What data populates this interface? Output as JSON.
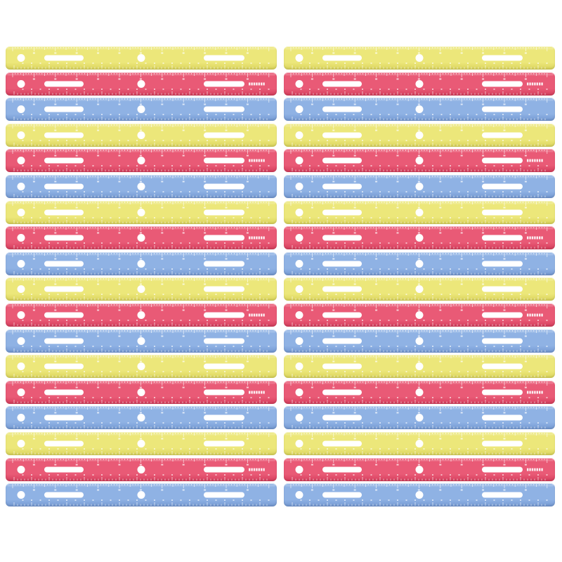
{
  "image": {
    "subject": "rulers",
    "columns": 2,
    "rows": 18,
    "color_cycle": [
      "yellow",
      "red",
      "blue"
    ]
  },
  "colors": {
    "yellow": {
      "face": "#ece77a",
      "edge": "#d9d35a",
      "mark": "#ffffff"
    },
    "red": {
      "face": "#e95a76",
      "edge": "#d43d5c",
      "mark": "#ffffff"
    },
    "blue": {
      "face": "#8fb2e4",
      "edge": "#7398d2",
      "mark": "#ffffff"
    }
  },
  "ruler": {
    "brand_text": "Westcott",
    "features": [
      "round-hole-left",
      "binder-slot-left",
      "round-hole-center",
      "binder-slot-right",
      "inch-scale",
      "centimeter-scale"
    ]
  }
}
